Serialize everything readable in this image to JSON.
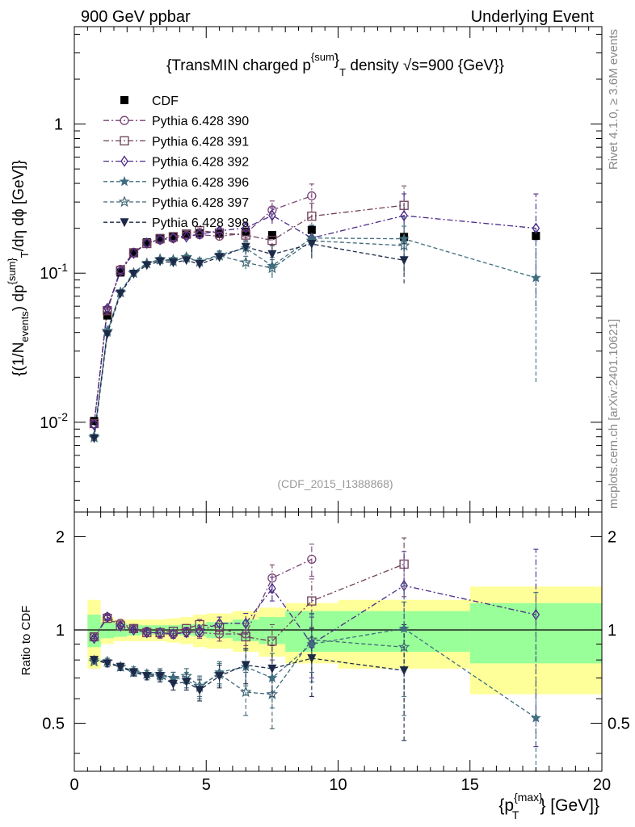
{
  "header": {
    "left": "900 GeV ppbar",
    "right": "Underlying Event",
    "side_top": "Rivet 4.1.0, ≥ 3.6M events",
    "side_bottom": "mcplots.cern.ch [arXiv:2401.10621]",
    "analysis": "(CDF_2015_I1388868)"
  },
  "chart_data": {
    "type": "scatter",
    "title": "{TransMIN charged p^{sum}_T density √s=900 {GeV}}",
    "title_parts": {
      "a": "{TransMIN charged p",
      "sup": "{sum",
      "close": "}",
      "sub": "T",
      "b": " density √s=900 {GeV}}"
    },
    "ylabel_parts": [
      "{(1/N",
      "events",
      ") dp",
      "{sum}",
      "T",
      "/dη  dϕ [GeV]}"
    ],
    "xlabel_parts": [
      "{p",
      "{max}",
      "T",
      "} [GeV]}"
    ],
    "ratio_ylabel": "Ratio to CDF",
    "xlim": [
      0,
      20
    ],
    "ylim_main": [
      0.0025,
      4.5
    ],
    "yscale_main": "log",
    "ylim_ratio": [
      0.35,
      2.4
    ],
    "yscale_ratio": "log",
    "x_ticks": [
      0,
      5,
      10,
      15,
      20
    ],
    "main_tick_labels": [
      "1",
      "10^{-1}",
      "10^{-2}"
    ],
    "ratio_tick_labels": [
      "0.5",
      "1",
      "2"
    ],
    "legend_position": "top-left",
    "data": {
      "name": "CDF",
      "color": "#000000",
      "x": [
        0.75,
        1.25,
        1.75,
        2.25,
        2.75,
        3.25,
        3.75,
        4.25,
        4.75,
        5.5,
        6.5,
        7.5,
        9.0,
        12.5,
        17.5
      ],
      "y": [
        0.0102,
        0.052,
        0.101,
        0.136,
        0.161,
        0.172,
        0.177,
        0.181,
        0.185,
        0.183,
        0.19,
        0.18,
        0.195,
        0.175,
        0.178
      ],
      "bins": [
        [
          0.5,
          1.0
        ],
        [
          1.0,
          1.5
        ],
        [
          1.5,
          2.0
        ],
        [
          2.0,
          2.5
        ],
        [
          2.5,
          3.0
        ],
        [
          3.0,
          3.5
        ],
        [
          3.5,
          4.0
        ],
        [
          4.0,
          4.5
        ],
        [
          4.5,
          5.0
        ],
        [
          5.0,
          6.0
        ],
        [
          6.0,
          7.0
        ],
        [
          7.0,
          8.0
        ],
        [
          8.0,
          10.0
        ],
        [
          10.0,
          15.0
        ],
        [
          15.0,
          20.0
        ]
      ],
      "band_stat": [
        0.12,
        0.06,
        0.05,
        0.04,
        0.035,
        0.035,
        0.035,
        0.04,
        0.045,
        0.06,
        0.08,
        0.1,
        0.15,
        0.15,
        0.22
      ],
      "band_total": [
        0.25,
        0.1,
        0.08,
        0.08,
        0.08,
        0.08,
        0.09,
        0.1,
        0.12,
        0.13,
        0.15,
        0.18,
        0.22,
        0.25,
        0.38
      ]
    },
    "series": [
      {
        "name": "Pythia 6.428 390",
        "marker": "circle-open",
        "dash": "dashdot",
        "color": "#7a4474",
        "x": [
          0.75,
          1.25,
          1.75,
          2.25,
          2.75,
          3.25,
          3.75,
          4.25,
          4.75,
          5.5,
          6.5,
          7.5,
          9.0
        ],
        "y": [
          0.0097,
          0.057,
          0.106,
          0.138,
          0.159,
          0.167,
          0.171,
          0.179,
          0.181,
          0.177,
          0.185,
          0.265,
          0.33
        ],
        "ratio": [
          0.95,
          1.1,
          1.05,
          1.01,
          0.99,
          0.97,
          0.97,
          0.99,
          0.98,
          0.97,
          0.97,
          1.47,
          1.69
        ],
        "err": [
          0.01,
          0.02,
          0.02,
          0.02,
          0.02,
          0.03,
          0.03,
          0.03,
          0.04,
          0.05,
          0.08,
          0.15,
          0.2
        ]
      },
      {
        "name": "Pythia 6.428 391",
        "marker": "square-open",
        "dash": "dashdot",
        "color": "#6e3f58",
        "x": [
          0.75,
          1.25,
          1.75,
          2.25,
          2.75,
          3.25,
          3.75,
          4.25,
          4.75,
          5.5,
          6.5,
          7.5,
          9.0,
          12.5
        ],
        "y": [
          0.0098,
          0.056,
          0.104,
          0.137,
          0.158,
          0.17,
          0.175,
          0.183,
          0.193,
          0.186,
          0.18,
          0.166,
          0.241,
          0.285
        ],
        "ratio": [
          0.95,
          1.09,
          1.03,
          1.01,
          0.98,
          0.98,
          0.99,
          1.01,
          1.04,
          1.02,
          0.95,
          0.92,
          1.24,
          1.63
        ],
        "err": [
          0.01,
          0.02,
          0.02,
          0.02,
          0.02,
          0.03,
          0.03,
          0.03,
          0.04,
          0.05,
          0.08,
          0.12,
          0.22,
          0.35
        ]
      },
      {
        "name": "Pythia 6.428 392",
        "marker": "diamond-open",
        "dash": "dashdot",
        "color": "#4b2a8a",
        "x": [
          0.75,
          1.25,
          1.75,
          2.25,
          2.75,
          3.25,
          3.75,
          4.25,
          4.75,
          5.5,
          6.5,
          7.5,
          9.0,
          12.5,
          17.5
        ],
        "y": [
          0.0096,
          0.058,
          0.103,
          0.136,
          0.159,
          0.168,
          0.172,
          0.175,
          0.183,
          0.192,
          0.201,
          0.244,
          0.172,
          0.243,
          0.2
        ],
        "ratio": [
          0.94,
          1.1,
          1.03,
          1.0,
          0.98,
          0.98,
          0.97,
          0.98,
          0.99,
          1.05,
          1.05,
          1.36,
          0.9,
          1.39,
          1.12
        ],
        "err": [
          0.01,
          0.02,
          0.02,
          0.02,
          0.02,
          0.03,
          0.03,
          0.03,
          0.04,
          0.05,
          0.08,
          0.12,
          0.2,
          0.4,
          0.7
        ]
      },
      {
        "name": "Pythia 6.428 396",
        "marker": "star-filled",
        "dash": "dashed",
        "color": "#3f6e80",
        "x": [
          0.75,
          1.25,
          1.75,
          2.25,
          2.75,
          3.25,
          3.75,
          4.25,
          4.75,
          5.5,
          6.5,
          7.5,
          9.0,
          12.5,
          17.5
        ],
        "y": [
          0.0081,
          0.04,
          0.075,
          0.101,
          0.117,
          0.122,
          0.124,
          0.126,
          0.12,
          0.133,
          0.147,
          0.112,
          0.172,
          0.17,
          0.093
        ],
        "ratio": [
          0.8,
          0.79,
          0.76,
          0.74,
          0.72,
          0.71,
          0.7,
          0.69,
          0.65,
          0.73,
          0.76,
          0.7,
          0.9,
          1.01,
          0.52
        ],
        "err": [
          0.01,
          0.02,
          0.02,
          0.02,
          0.02,
          0.03,
          0.03,
          0.04,
          0.05,
          0.06,
          0.1,
          0.14,
          0.22,
          0.4,
          0.8
        ]
      },
      {
        "name": "Pythia 6.428 397",
        "marker": "star-open",
        "dash": "dashed",
        "color": "#406878",
        "x": [
          0.75,
          1.25,
          1.75,
          2.25,
          2.75,
          3.25,
          3.75,
          4.25,
          4.75,
          5.5,
          6.5,
          7.5,
          9.0,
          12.5
        ],
        "y": [
          0.0079,
          0.041,
          0.074,
          0.1,
          0.116,
          0.124,
          0.12,
          0.128,
          0.119,
          0.131,
          0.118,
          0.108,
          0.165,
          0.153
        ],
        "ratio": [
          0.79,
          0.79,
          0.76,
          0.73,
          0.72,
          0.72,
          0.7,
          0.71,
          0.66,
          0.72,
          0.63,
          0.62,
          0.93,
          0.88
        ],
        "err": [
          0.01,
          0.02,
          0.02,
          0.02,
          0.02,
          0.03,
          0.03,
          0.04,
          0.05,
          0.06,
          0.1,
          0.14,
          0.2,
          0.35
        ]
      },
      {
        "name": "Pythia 6.428 398",
        "marker": "triangle-down",
        "dash": "dashed",
        "color": "#1c2a48",
        "x": [
          0.75,
          1.25,
          1.75,
          2.25,
          2.75,
          3.25,
          3.75,
          4.25,
          4.75,
          5.5,
          6.5,
          7.5,
          9.0,
          12.5
        ],
        "y": [
          0.0078,
          0.039,
          0.073,
          0.099,
          0.113,
          0.12,
          0.118,
          0.122,
          0.115,
          0.128,
          0.15,
          0.134,
          0.157,
          0.122
        ],
        "ratio": [
          0.8,
          0.78,
          0.76,
          0.73,
          0.71,
          0.71,
          0.67,
          0.68,
          0.64,
          0.71,
          0.77,
          0.75,
          0.81,
          0.74
        ],
        "err": [
          0.01,
          0.02,
          0.02,
          0.02,
          0.02,
          0.03,
          0.03,
          0.04,
          0.05,
          0.06,
          0.1,
          0.14,
          0.2,
          0.3
        ]
      }
    ]
  }
}
